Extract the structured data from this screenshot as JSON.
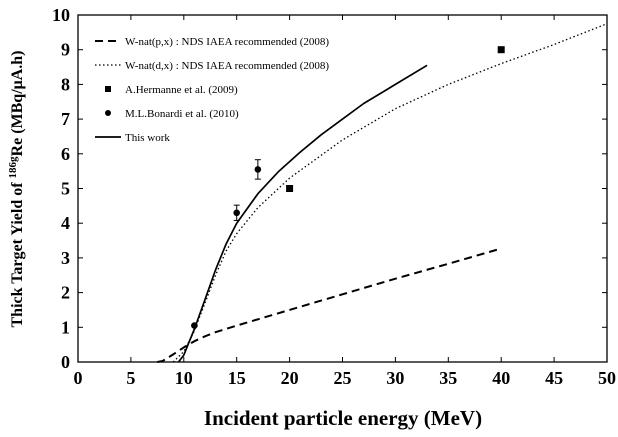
{
  "chart_data": {
    "type": "line",
    "xlabel": "Incident particle energy (MeV)",
    "ylabel_parts": [
      "Thick Target Yield of ",
      "186g",
      "Re (MBq/μA.h)"
    ],
    "xlim": [
      0,
      50
    ],
    "ylim": [
      0,
      10
    ],
    "xticks": [
      "0",
      "5",
      "10",
      "15",
      "20",
      "25",
      "30",
      "35",
      "40",
      "45",
      "50"
    ],
    "yticks": [
      "0",
      "1",
      "2",
      "3",
      "4",
      "5",
      "6",
      "7",
      "8",
      "9",
      "10"
    ],
    "grid": false,
    "legend_position": "top-left",
    "series": [
      {
        "name": "W-nat(p,x) : NDS IAEA recommended (2008)",
        "style": "dashed",
        "x": [
          7.5,
          8,
          9,
          10,
          11,
          12,
          13,
          15,
          20,
          25,
          30,
          35,
          40
        ],
        "y": [
          0,
          0.03,
          0.22,
          0.42,
          0.6,
          0.74,
          0.86,
          1.05,
          1.5,
          1.95,
          2.4,
          2.83,
          3.27
        ]
      },
      {
        "name": "W-nat(d,x) : NDS IAEA recommended (2008)",
        "style": "dotted",
        "x": [
          9,
          10,
          11,
          12,
          13,
          14,
          15,
          17,
          20,
          25,
          30,
          35,
          40,
          45,
          50
        ],
        "y": [
          0,
          0.3,
          0.9,
          1.7,
          2.5,
          3.2,
          3.7,
          4.45,
          5.3,
          6.4,
          7.3,
          8.0,
          8.6,
          9.15,
          9.75
        ]
      },
      {
        "name": "A.Hermanne et al. (2009)",
        "style": "square-marker",
        "x": [
          20,
          40
        ],
        "y": [
          5.0,
          9.0
        ]
      },
      {
        "name": "M.L.Bonardi et al. (2010)",
        "style": "circle-marker-errorbar",
        "x": [
          11,
          15,
          17
        ],
        "y": [
          1.05,
          4.3,
          5.55
        ],
        "yerr": [
          0,
          0.22,
          0.28
        ]
      },
      {
        "name": "This work",
        "style": "solid",
        "x": [
          9.5,
          10,
          11,
          12,
          13,
          14,
          15,
          17,
          19,
          21,
          23,
          25,
          27,
          30,
          33
        ],
        "y": [
          0,
          0.2,
          0.95,
          1.8,
          2.65,
          3.4,
          4.0,
          4.85,
          5.5,
          6.05,
          6.55,
          7.0,
          7.45,
          8.0,
          8.55
        ]
      }
    ]
  }
}
